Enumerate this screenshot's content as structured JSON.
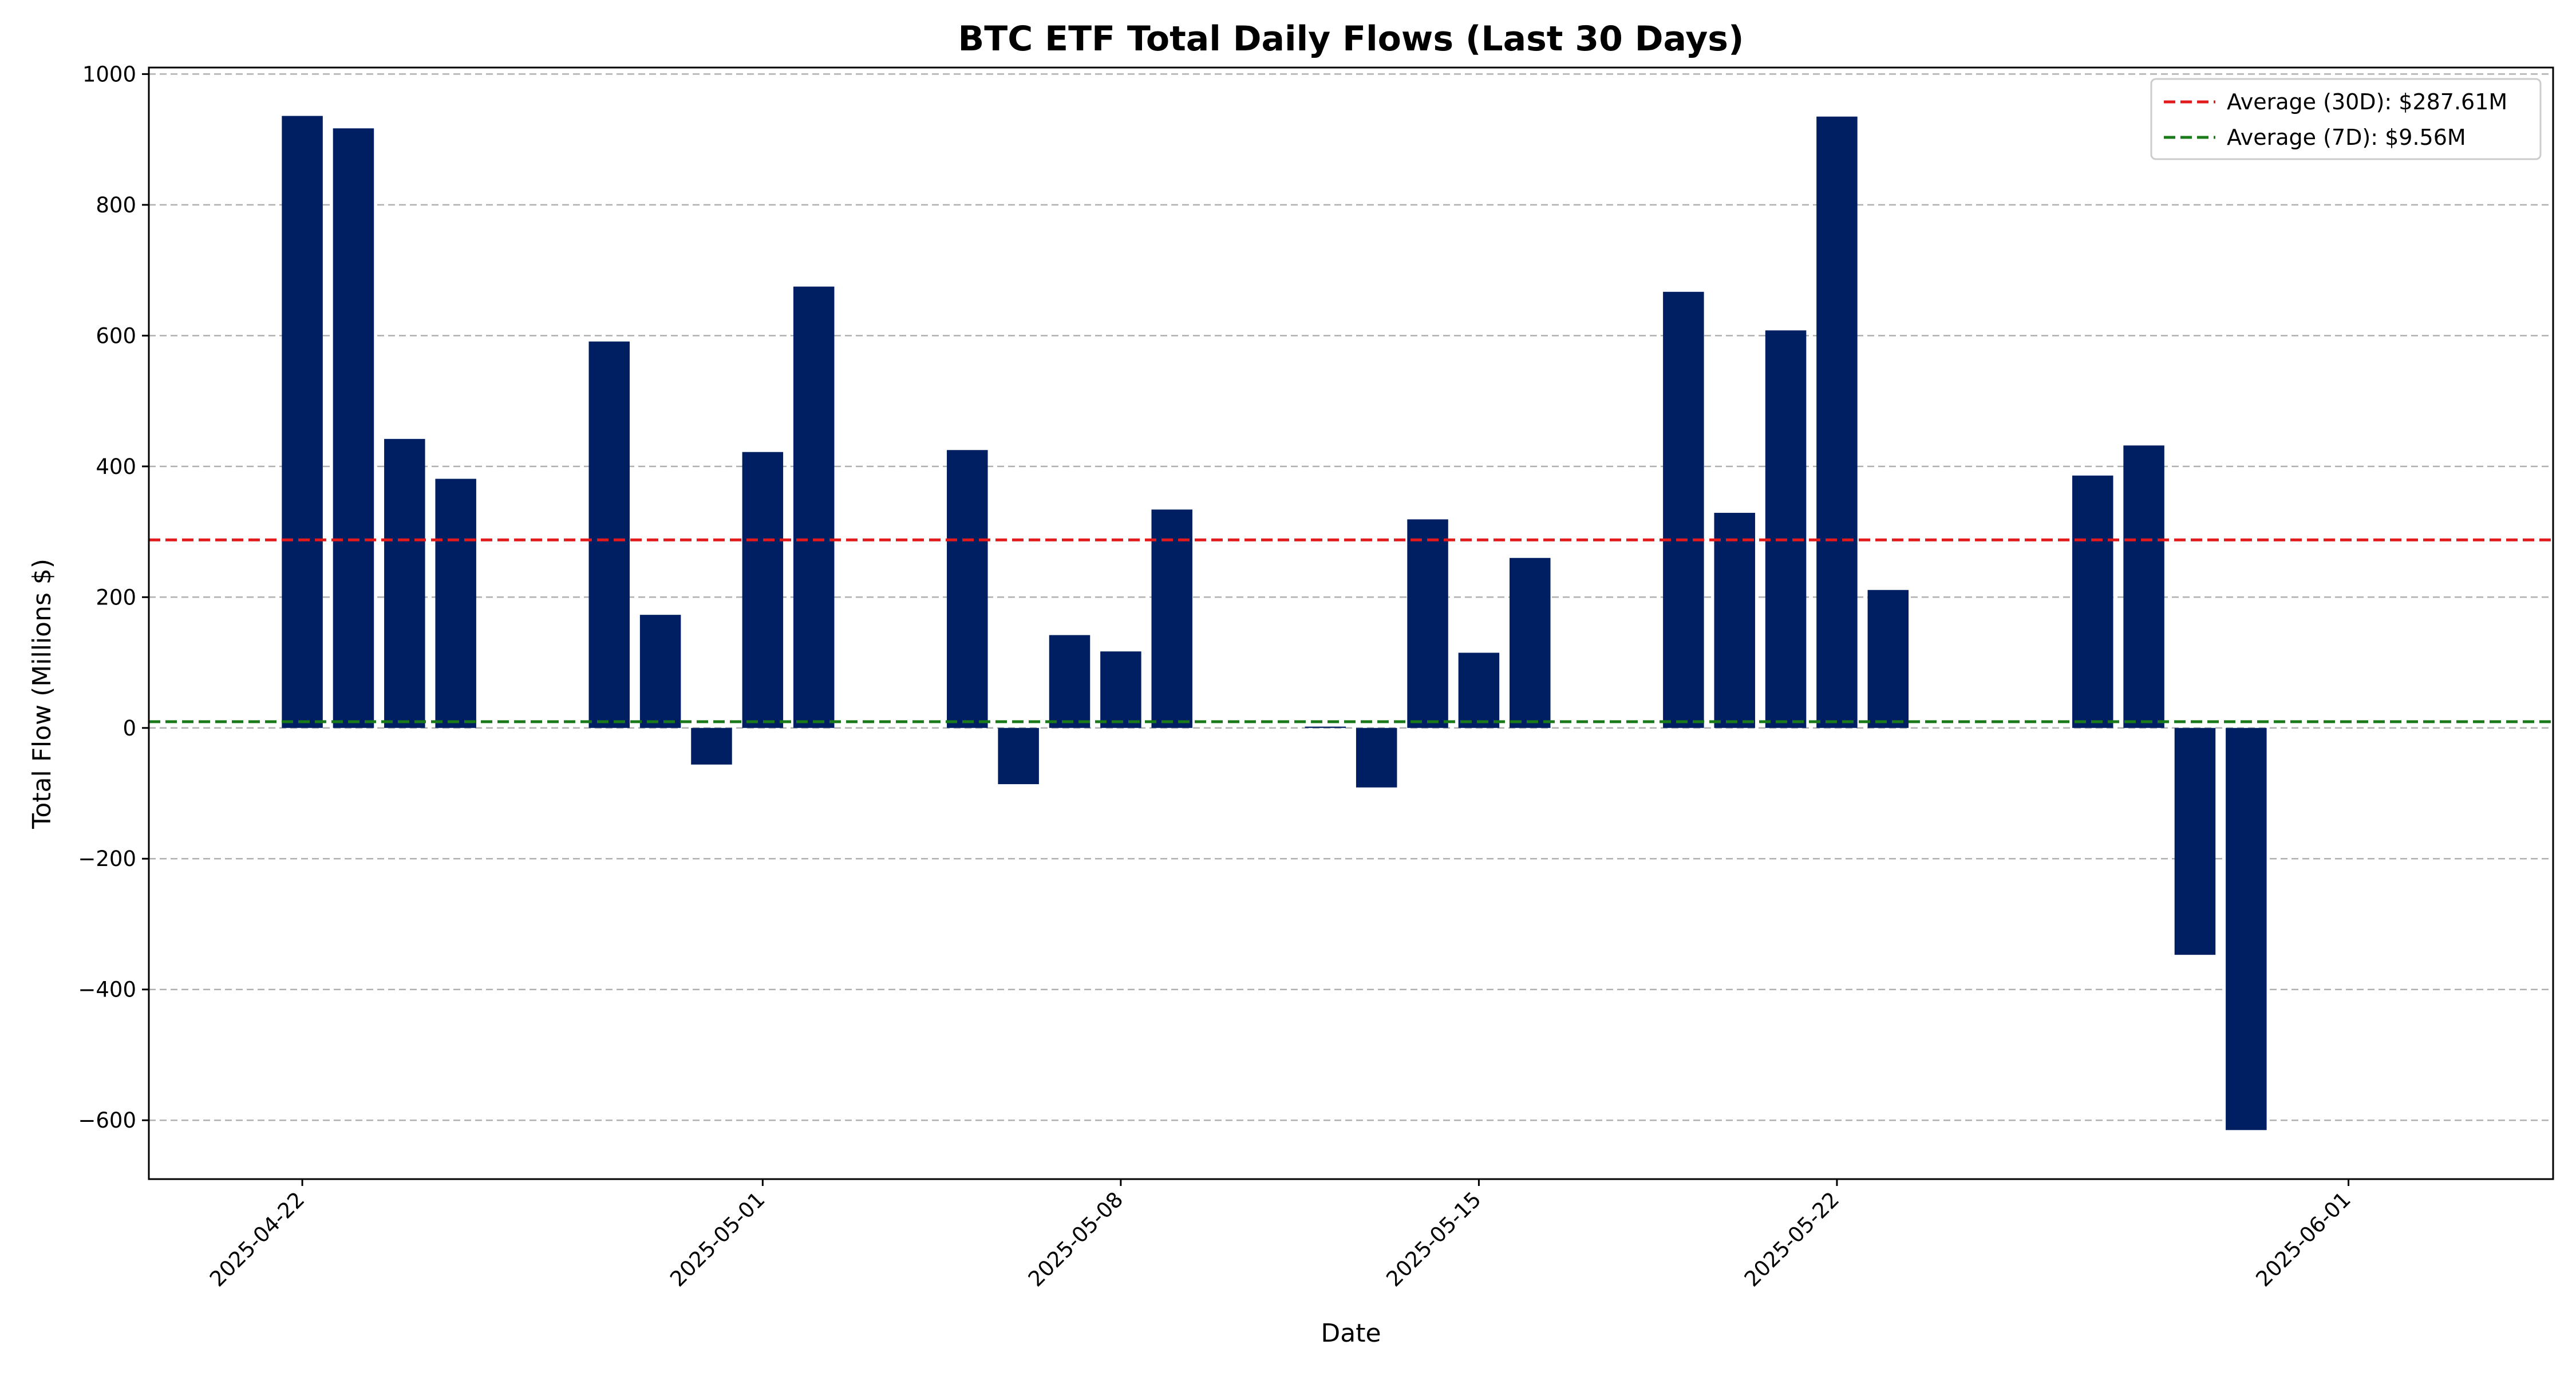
{
  "chart_data": {
    "type": "bar",
    "title": "BTC ETF Total Daily Flows (Last 30 Days)",
    "xlabel": "Date",
    "ylabel": "Total Flow (Millions $)",
    "x_range": [
      "2025-04-19",
      "2025-06-05"
    ],
    "ylim": [
      -690,
      1010
    ],
    "y_ticks": [
      -600,
      -400,
      -200,
      0,
      200,
      400,
      600,
      800,
      1000
    ],
    "y_tick_labels": [
      "−600",
      "−400",
      "−200",
      "0",
      "200",
      "400",
      "600",
      "800",
      "1000"
    ],
    "x_ticks": [
      "2025-04-22",
      "2025-05-01",
      "2025-05-08",
      "2025-05-15",
      "2025-05-22",
      "2025-06-01"
    ],
    "grid": "horizontal dashed",
    "legend_position": "top-right",
    "bar_color": "#001f62",
    "series": [
      {
        "dates": [
          "2025-04-22",
          "2025-04-23",
          "2025-04-24",
          "2025-04-25",
          "2025-04-28",
          "2025-04-29",
          "2025-04-30",
          "2025-05-01",
          "2025-05-02",
          "2025-05-05",
          "2025-05-06",
          "2025-05-07",
          "2025-05-08",
          "2025-05-09",
          "2025-05-12",
          "2025-05-13",
          "2025-05-14",
          "2025-05-15",
          "2025-05-16",
          "2025-05-19",
          "2025-05-20",
          "2025-05-21",
          "2025-05-22",
          "2025-05-23",
          "2025-05-27",
          "2025-05-28",
          "2025-05-29",
          "2025-05-30"
        ],
        "values": [
          936,
          917,
          442,
          381,
          591,
          173,
          -56,
          422,
          675,
          425,
          -86,
          142,
          117,
          334,
          2,
          -91,
          319,
          115,
          260,
          667,
          329,
          608,
          935,
          211,
          386,
          432,
          -347,
          -615
        ]
      }
    ],
    "reference_lines": [
      {
        "label": "Average (30D): $287.61M",
        "value": 287.61,
        "color": "#e31a1c",
        "style": "dashed"
      },
      {
        "label": "Average (7D): $9.56M",
        "value": 9.56,
        "color": "#1a7a1a",
        "style": "dashed"
      }
    ]
  }
}
